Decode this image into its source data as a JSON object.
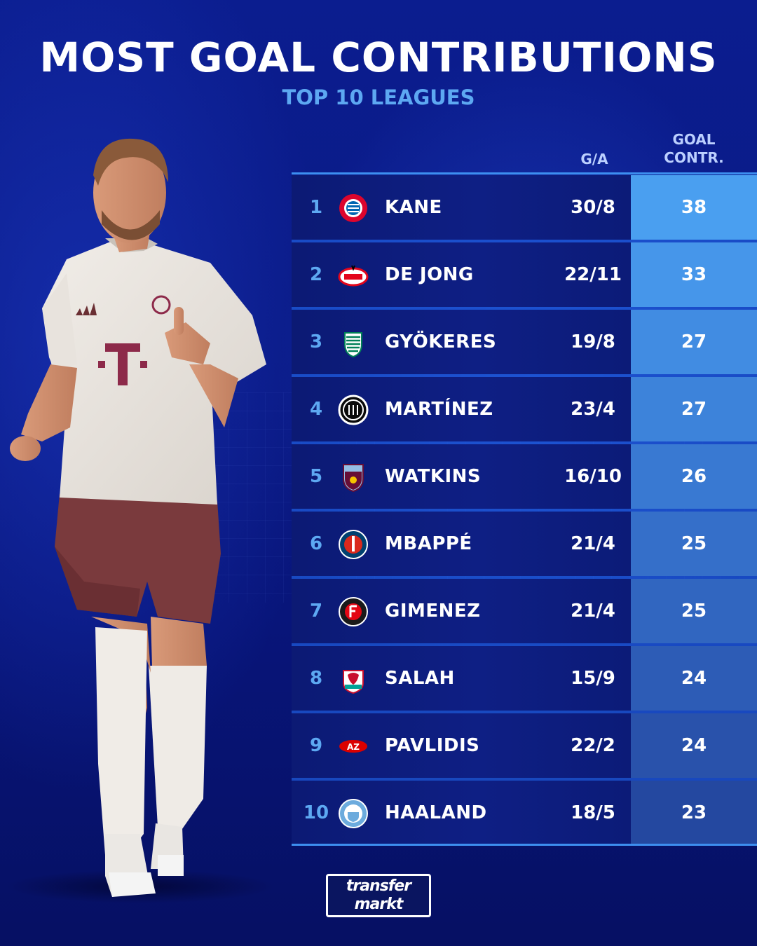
{
  "header": {
    "title": "MOST GOAL CONTRIBUTIONS",
    "subtitle": "TOP 10 LEAGUES"
  },
  "table": {
    "col_ga": "G/A",
    "col_gc_line1": "GOAL",
    "col_gc_line2": "CONTR.",
    "rows": [
      {
        "rank": "1",
        "name": "KANE",
        "ga": "30/8",
        "gc": "38",
        "club_icon": "bayern-munich-crest",
        "gc_color": "#4a9ff0"
      },
      {
        "rank": "2",
        "name": "DE JONG",
        "ga": "22/11",
        "gc": "33",
        "club_icon": "psv-crest",
        "gc_color": "#4696ea"
      },
      {
        "rank": "3",
        "name": "GYÖKERES",
        "ga": "19/8",
        "gc": "27",
        "club_icon": "sporting-cp-crest",
        "gc_color": "#418ce2"
      },
      {
        "rank": "4",
        "name": "MARTÍNEZ",
        "ga": "23/4",
        "gc": "27",
        "club_icon": "inter-milan-crest",
        "gc_color": "#3d83da"
      },
      {
        "rank": "5",
        "name": "WATKINS",
        "ga": "16/10",
        "gc": "26",
        "club_icon": "aston-villa-crest",
        "gc_color": "#3979d2"
      },
      {
        "rank": "6",
        "name": "MBAPPÉ",
        "ga": "21/4",
        "gc": "25",
        "club_icon": "psg-crest",
        "gc_color": "#356fc9"
      },
      {
        "rank": "7",
        "name": "GIMENEZ",
        "ga": "21/4",
        "gc": "25",
        "club_icon": "feyenoord-crest",
        "gc_color": "#3166c0"
      },
      {
        "rank": "8",
        "name": "SALAH",
        "ga": "15/9",
        "gc": "24",
        "club_icon": "liverpool-crest",
        "gc_color": "#2d5cb6"
      },
      {
        "rank": "9",
        "name": "PAVLIDIS",
        "ga": "22/2",
        "gc": "24",
        "club_icon": "az-alkmaar-crest",
        "gc_color": "#2952ab"
      },
      {
        "rank": "10",
        "name": "HAALAND",
        "ga": "18/5",
        "gc": "23",
        "club_icon": "manchester-city-crest",
        "gc_color": "#2448a0"
      }
    ]
  },
  "logo": {
    "line1": "transfer",
    "line2": "markt"
  },
  "colors": {
    "background": "#0a1a86",
    "accent": "#5da8f2",
    "rule": "#3d8ff0"
  }
}
